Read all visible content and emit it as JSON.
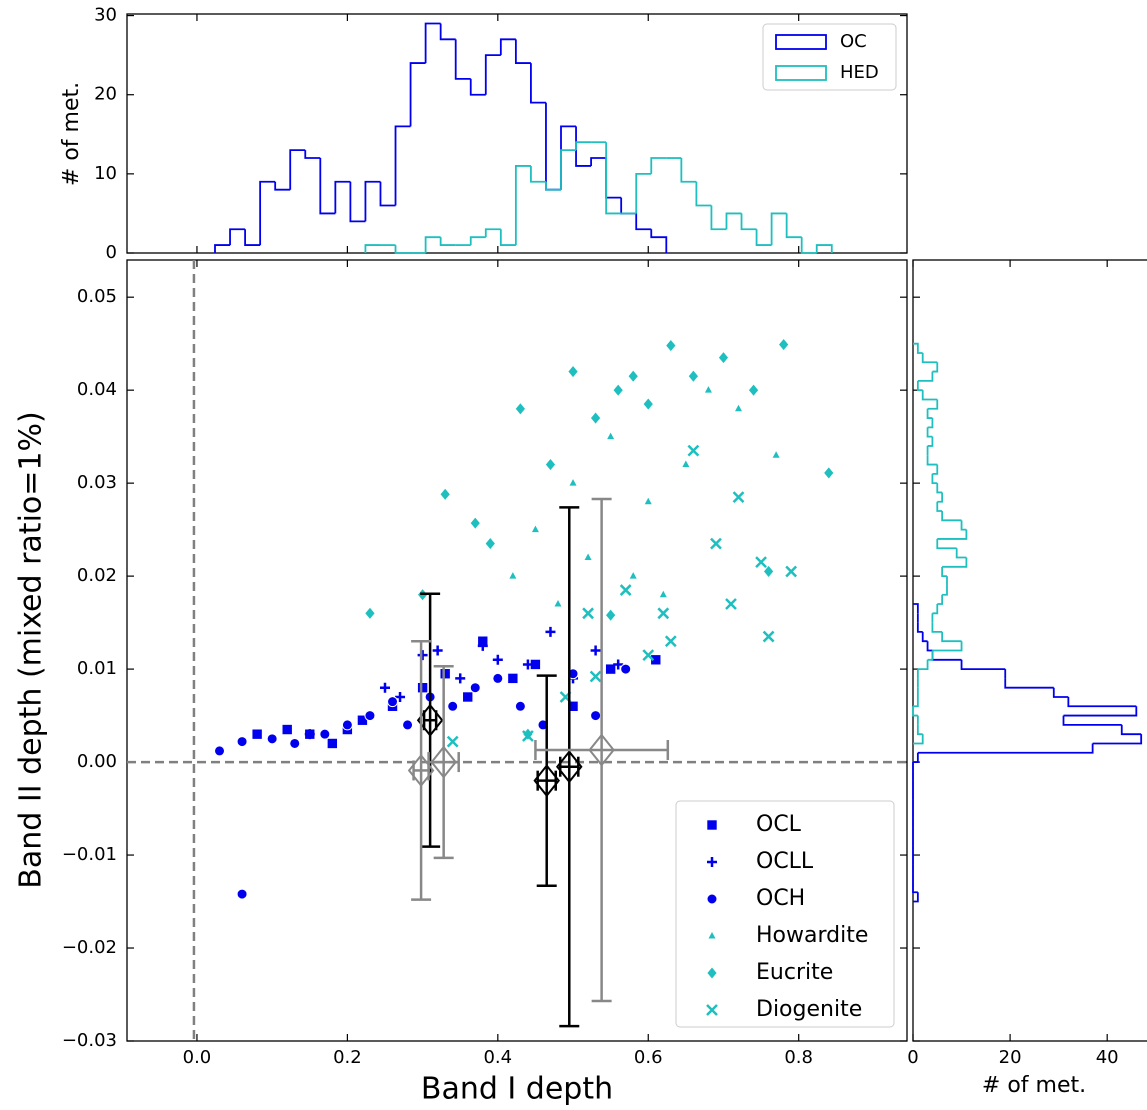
{
  "chart_data": [
    {
      "type": "histogram",
      "orientation": "vertical",
      "ylabel": "# of met.",
      "ylim": [
        0,
        30.2
      ],
      "yticks": [
        0,
        10,
        20,
        30
      ],
      "legend": "upper right",
      "series": [
        {
          "name": "OC",
          "color": "#0000ee",
          "bins": [
            0.024,
            0.044,
            0.064,
            0.084,
            0.104,
            0.124,
            0.144,
            0.164,
            0.184,
            0.204,
            0.224,
            0.244,
            0.264,
            0.284,
            0.304,
            0.324,
            0.344,
            0.364,
            0.384,
            0.404,
            0.424,
            0.444,
            0.464,
            0.484,
            0.504,
            0.524,
            0.544,
            0.564,
            0.584,
            0.604,
            0.624
          ],
          "counts": [
            1,
            3,
            1,
            9,
            8,
            13,
            12,
            5,
            9,
            4,
            9,
            6,
            16,
            24,
            29,
            27,
            22,
            20,
            25,
            27,
            24,
            19,
            8,
            16,
            11,
            12,
            7,
            5,
            3,
            2
          ]
        },
        {
          "name": "HED",
          "color": "#1fbfbf",
          "bins": [
            0.224,
            0.244,
            0.264,
            0.284,
            0.304,
            0.324,
            0.344,
            0.364,
            0.384,
            0.404,
            0.424,
            0.444,
            0.464,
            0.484,
            0.504,
            0.524,
            0.544,
            0.564,
            0.584,
            0.604,
            0.624,
            0.644,
            0.664,
            0.684,
            0.704,
            0.724,
            0.744,
            0.764,
            0.784,
            0.804,
            0.824,
            0.844
          ],
          "counts": [
            1,
            1,
            0,
            0,
            2,
            1,
            1,
            2,
            3,
            1,
            11,
            9,
            8,
            13,
            14,
            14,
            5,
            5,
            10,
            12,
            12,
            9,
            6,
            3,
            5,
            3,
            1,
            5,
            2,
            0,
            1
          ]
        }
      ]
    },
    {
      "type": "scatter",
      "xlabel": "Band I depth",
      "ylabel": "Band II depth (mixed ratio=1%)",
      "xlim": [
        -0.093,
        0.944
      ],
      "ylim": [
        -0.03,
        0.054
      ],
      "xticks": [
        {
          "value": 0,
          "label": "0.0"
        },
        0.2,
        0.4,
        0.6,
        0.8
      ],
      "yticks": [
        {
          "value": -0.03,
          "label": "−0.03"
        },
        {
          "value": -0.02,
          "label": "−0.02"
        },
        {
          "value": -0.01,
          "label": "−0.01"
        },
        {
          "value": 0,
          "label": "0.00"
        },
        0.01,
        0.02,
        0.03,
        0.04,
        0.05
      ],
      "vline": -0.004,
      "hline": 0,
      "legend": "lower right",
      "series": [
        {
          "name": "OCL",
          "marker": "square",
          "color": "#0000ee",
          "x": [
            0.08,
            0.12,
            0.15,
            0.18,
            0.2,
            0.22,
            0.26,
            0.3,
            0.33,
            0.36,
            0.38,
            0.42,
            0.45,
            0.5,
            0.55,
            0.61
          ],
          "y": [
            0.003,
            0.0035,
            0.003,
            0.002,
            0.0035,
            0.0045,
            0.006,
            0.008,
            0.0095,
            0.007,
            0.013,
            0.009,
            0.0105,
            0.006,
            0.01,
            0.011
          ]
        },
        {
          "name": "OCLL",
          "marker": "plus",
          "color": "#0000ee",
          "x": [
            0.15,
            0.2,
            0.25,
            0.27,
            0.3,
            0.32,
            0.35,
            0.38,
            0.4,
            0.44,
            0.47,
            0.5,
            0.53,
            0.56
          ],
          "y": [
            0.003,
            0.004,
            0.008,
            0.007,
            0.0115,
            0.012,
            0.009,
            0.0125,
            0.011,
            0.0105,
            0.014,
            0.009,
            0.012,
            0.0105
          ]
        },
        {
          "name": "OCH",
          "marker": "circle",
          "color": "#0000ee",
          "x": [
            0.03,
            0.06,
            0.1,
            0.13,
            0.17,
            0.2,
            0.23,
            0.26,
            0.28,
            0.31,
            0.34,
            0.37,
            0.4,
            0.43,
            0.46,
            0.5,
            0.53,
            0.57,
            0.06
          ],
          "y": [
            0.0012,
            0.0022,
            0.0025,
            0.002,
            0.003,
            0.004,
            0.005,
            0.0065,
            0.004,
            0.007,
            0.006,
            0.008,
            0.009,
            0.006,
            0.004,
            0.0095,
            0.005,
            0.01,
            -0.0142
          ]
        },
        {
          "name": "Howardite",
          "marker": "triangle",
          "color": "#1fbfbf",
          "x": [
            0.42,
            0.45,
            0.48,
            0.5,
            0.52,
            0.55,
            0.58,
            0.6,
            0.62,
            0.65,
            0.68,
            0.72,
            0.77
          ],
          "y": [
            0.02,
            0.025,
            0.017,
            0.03,
            0.022,
            0.035,
            0.02,
            0.028,
            0.018,
            0.032,
            0.04,
            0.038,
            0.033
          ]
        },
        {
          "name": "Eucrite",
          "marker": "diamond",
          "color": "#1fbfbf",
          "x": [
            0.23,
            0.3,
            0.33,
            0.37,
            0.39,
            0.43,
            0.47,
            0.5,
            0.53,
            0.56,
            0.58,
            0.6,
            0.63,
            0.66,
            0.7,
            0.74,
            0.78,
            0.84,
            0.44,
            0.55,
            0.76
          ],
          "y": [
            0.016,
            0.018,
            0.0288,
            0.0257,
            0.0235,
            0.038,
            0.032,
            0.042,
            0.037,
            0.04,
            0.0415,
            0.0385,
            0.0448,
            0.0415,
            0.0435,
            0.04,
            0.0449,
            0.0311,
            0.003,
            0.0158,
            0.0205
          ]
        },
        {
          "name": "Diogenite",
          "marker": "x",
          "color": "#1fbfbf",
          "x": [
            0.34,
            0.44,
            0.49,
            0.52,
            0.57,
            0.6,
            0.63,
            0.66,
            0.69,
            0.72,
            0.75,
            0.76,
            0.79,
            0.62,
            0.53,
            0.71
          ],
          "y": [
            0.0022,
            0.0028,
            0.007,
            0.016,
            0.0185,
            0.0115,
            0.013,
            0.0335,
            0.0235,
            0.0285,
            0.0215,
            0.0135,
            0.0205,
            0.016,
            0.0092,
            0.017
          ]
        }
      ],
      "errorbars": [
        {
          "color": "#000000",
          "x": [
            0.31,
            0.465,
            0.495
          ],
          "y": [
            0.0045,
            -0.002,
            -0.0005
          ],
          "xerr": [
            0.008,
            0.012,
            0.012
          ],
          "yerr": [
            0.0136,
            0.0113,
            0.0279
          ]
        },
        {
          "color": "#888888",
          "x": [
            0.298,
            0.328,
            0.538
          ],
          "y": [
            -0.0009,
            0,
            0.0013
          ],
          "xerr": [
            0.01,
            0.02,
            0.088
          ],
          "yerr": [
            0.0139,
            0.0103,
            0.027
          ]
        }
      ]
    },
    {
      "type": "histogram",
      "orientation": "horizontal",
      "xlabel": "# of met.",
      "xlim": [
        0,
        48.2
      ],
      "xticks": [
        0,
        20,
        40
      ],
      "series": [
        {
          "name": "OC",
          "color": "#0000ee",
          "bins": [
            -0.015,
            -0.014,
            -0.013,
            -0.012,
            -0.011,
            -0.01,
            -0.009,
            -0.008,
            -0.007,
            -0.006,
            -0.005,
            -0.004,
            -0.003,
            -0.002,
            -0.001,
            0,
            0.001,
            0.002,
            0.003,
            0.004,
            0.005,
            0.006,
            0.007,
            0.008,
            0.009,
            0.01,
            0.011,
            0.012,
            0.013,
            0.014,
            0.015,
            0.016,
            0.017
          ],
          "counts": [
            1,
            0,
            0,
            0,
            0,
            0,
            0,
            0,
            0,
            0,
            0,
            0,
            0,
            0,
            0,
            1,
            37,
            47,
            43,
            31,
            46,
            32,
            29,
            19,
            19,
            10,
            4,
            3,
            2,
            1,
            1,
            1
          ]
        },
        {
          "name": "HED",
          "color": "#1fbfbf",
          "bins": [
            0.002,
            0.003,
            0.004,
            0.005,
            0.006,
            0.007,
            0.008,
            0.009,
            0.01,
            0.011,
            0.012,
            0.013,
            0.014,
            0.015,
            0.016,
            0.017,
            0.018,
            0.019,
            0.02,
            0.021,
            0.022,
            0.023,
            0.024,
            0.025,
            0.026,
            0.027,
            0.028,
            0.029,
            0.03,
            0.031,
            0.032,
            0.033,
            0.034,
            0.035,
            0.036,
            0.037,
            0.038,
            0.039,
            0.04,
            0.041,
            0.042,
            0.043,
            0.044,
            0.045
          ],
          "counts": [
            2,
            1,
            1,
            0,
            1,
            1,
            1,
            1,
            3,
            4,
            10,
            6,
            4,
            4,
            5,
            6,
            7,
            7,
            6,
            11,
            9,
            5,
            11,
            10,
            6,
            5,
            6,
            5,
            4,
            5,
            3,
            3,
            4,
            3,
            4,
            3,
            5,
            2,
            1,
            4,
            5,
            2,
            1
          ]
        }
      ]
    }
  ]
}
